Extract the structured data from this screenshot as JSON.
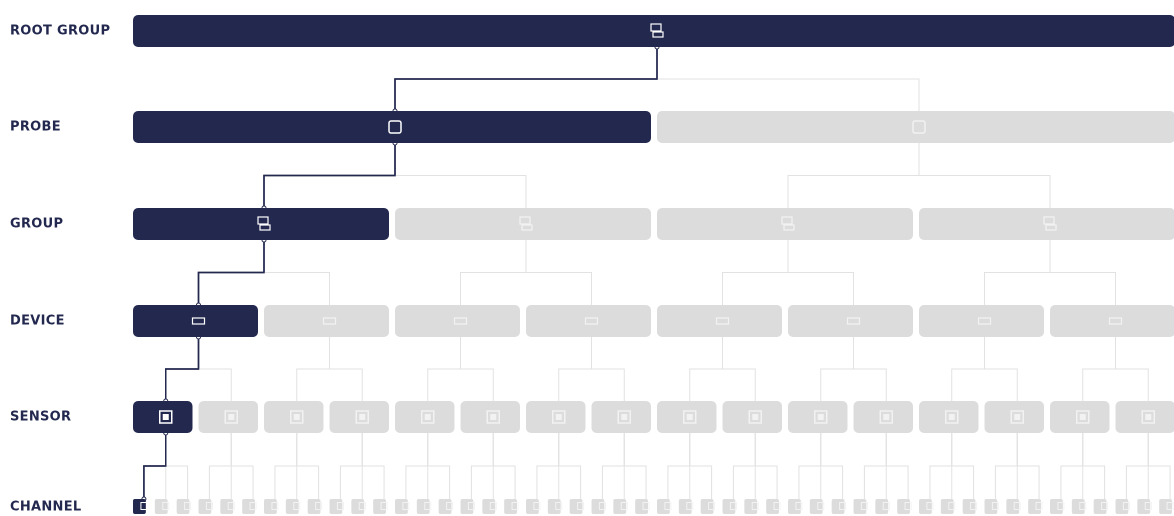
{
  "levels": [
    {
      "label": "ROOT GROUP"
    },
    {
      "label": "PROBE"
    },
    {
      "label": "GROUP"
    },
    {
      "label": "DEVICE"
    },
    {
      "label": "SENSOR"
    },
    {
      "label": "CHANNEL"
    }
  ]
}
